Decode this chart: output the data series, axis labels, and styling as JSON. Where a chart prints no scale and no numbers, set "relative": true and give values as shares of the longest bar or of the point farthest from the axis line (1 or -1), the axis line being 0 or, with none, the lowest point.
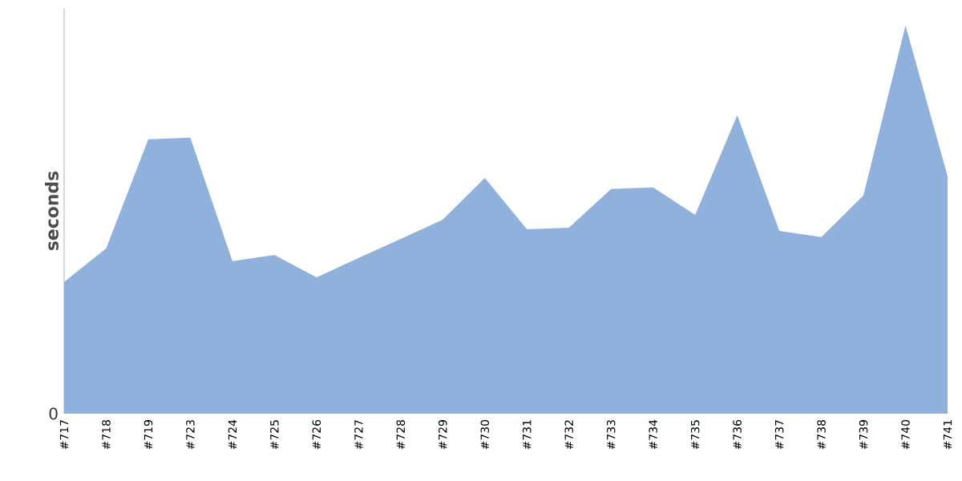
{
  "chart_data": {
    "type": "area",
    "ylabel": "seconds",
    "relative": true,
    "annotations": [
      "0"
    ],
    "categories": [
      "#717",
      "#718",
      "#719",
      "#723",
      "#724",
      "#725",
      "#726",
      "#727",
      "#728",
      "#729",
      "#730",
      "#731",
      "#732",
      "#733",
      "#734",
      "#735",
      "#736",
      "#737",
      "#738",
      "#739",
      "#740",
      "#741"
    ],
    "series": [
      {
        "color": "#8fb1db",
        "values": [
          0.339,
          0.426,
          0.707,
          0.711,
          0.393,
          0.409,
          0.351,
          0.401,
          0.45,
          0.5,
          0.607,
          0.475,
          0.479,
          0.579,
          0.583,
          0.512,
          0.769,
          0.471,
          0.455,
          0.562,
          1,
          0.612
        ]
      }
    ]
  }
}
